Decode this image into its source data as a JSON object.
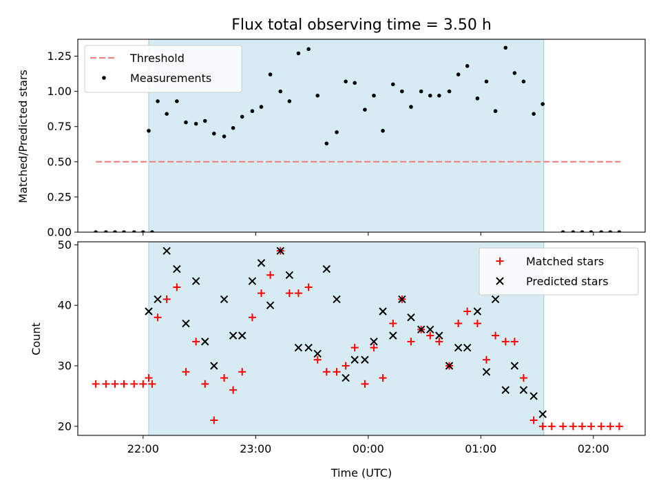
{
  "chart_data": [
    {
      "type": "scatter",
      "panel": "top",
      "title": "Flux total observing time = 3.50 h",
      "xlabel": "",
      "ylabel": "Matched/Predicted stars",
      "x_unit": "hours (UTC, continuing past midnight as 24-26)",
      "xlim": [
        21.42,
        26.46
      ],
      "ylim": [
        0.0,
        1.37
      ],
      "yticks": [
        0.0,
        0.25,
        0.5,
        0.75,
        1.0,
        1.25
      ],
      "ytick_labels": [
        "0.00",
        "0.25",
        "0.50",
        "0.75",
        "1.00",
        "1.25"
      ],
      "legend_position": "upper-left",
      "shaded_interval": [
        22.05,
        25.56
      ],
      "threshold": {
        "name": "Threshold",
        "y": 0.5,
        "x": [
          21.58,
          26.24
        ],
        "color": "#f08080"
      },
      "series": [
        {
          "name": "Measurements",
          "color": "#000000",
          "marker": "dot",
          "points": [
            [
              21.58,
              0.0
            ],
            [
              21.67,
              0.0
            ],
            [
              21.75,
              0.0
            ],
            [
              21.83,
              0.0
            ],
            [
              21.92,
              0.0
            ],
            [
              22.0,
              0.0
            ],
            [
              22.08,
              0.0
            ],
            [
              22.05,
              0.72
            ],
            [
              22.13,
              0.93
            ],
            [
              22.21,
              0.84
            ],
            [
              22.3,
              0.93
            ],
            [
              22.38,
              0.78
            ],
            [
              22.47,
              0.77
            ],
            [
              22.55,
              0.79
            ],
            [
              22.63,
              0.7
            ],
            [
              22.72,
              0.68
            ],
            [
              22.8,
              0.74
            ],
            [
              22.88,
              0.82
            ],
            [
              22.97,
              0.86
            ],
            [
              23.05,
              0.89
            ],
            [
              23.13,
              1.12
            ],
            [
              23.22,
              1.0
            ],
            [
              23.3,
              0.93
            ],
            [
              23.38,
              1.27
            ],
            [
              23.47,
              1.3
            ],
            [
              23.55,
              0.97
            ],
            [
              23.63,
              0.63
            ],
            [
              23.72,
              0.71
            ],
            [
              23.8,
              1.07
            ],
            [
              23.88,
              1.06
            ],
            [
              23.97,
              0.87
            ],
            [
              24.05,
              0.97
            ],
            [
              24.13,
              0.72
            ],
            [
              24.22,
              1.05
            ],
            [
              24.3,
              1.0
            ],
            [
              24.38,
              0.89
            ],
            [
              24.47,
              1.0
            ],
            [
              24.55,
              0.97
            ],
            [
              24.63,
              0.97
            ],
            [
              24.72,
              1.0
            ],
            [
              24.8,
              1.12
            ],
            [
              24.88,
              1.18
            ],
            [
              24.97,
              0.95
            ],
            [
              25.05,
              1.07
            ],
            [
              25.13,
              0.86
            ],
            [
              25.22,
              1.31
            ],
            [
              25.3,
              1.13
            ],
            [
              25.38,
              1.07
            ],
            [
              25.47,
              0.84
            ],
            [
              25.55,
              0.91
            ],
            [
              25.73,
              0.0
            ],
            [
              25.82,
              0.0
            ],
            [
              25.9,
              0.0
            ],
            [
              25.98,
              0.0
            ],
            [
              26.07,
              0.0
            ],
            [
              26.15,
              0.0
            ],
            [
              26.23,
              0.0
            ]
          ]
        }
      ]
    },
    {
      "type": "scatter",
      "panel": "bottom",
      "title": "",
      "xlabel": "Time (UTC)",
      "ylabel": "Count",
      "xlim": [
        21.42,
        26.46
      ],
      "ylim": [
        18.5,
        50.5
      ],
      "xticks": [
        22,
        23,
        24,
        25,
        26
      ],
      "xtick_labels": [
        "22:00",
        "23:00",
        "00:00",
        "01:00",
        "02:00"
      ],
      "yticks": [
        20,
        30,
        40,
        50
      ],
      "ytick_labels": [
        "20",
        "30",
        "40",
        "50"
      ],
      "legend_position": "upper-right",
      "shaded_interval": [
        22.05,
        25.56
      ],
      "series": [
        {
          "name": "Matched stars",
          "color": "#ff0000",
          "marker": "plus",
          "points": [
            [
              21.58,
              27
            ],
            [
              21.67,
              27
            ],
            [
              21.75,
              27
            ],
            [
              21.83,
              27
            ],
            [
              21.92,
              27
            ],
            [
              22.0,
              27
            ],
            [
              22.08,
              27
            ],
            [
              22.05,
              28
            ],
            [
              22.13,
              38
            ],
            [
              22.21,
              41
            ],
            [
              22.3,
              43
            ],
            [
              22.38,
              29
            ],
            [
              22.47,
              34
            ],
            [
              22.55,
              27
            ],
            [
              22.63,
              21
            ],
            [
              22.72,
              28
            ],
            [
              22.8,
              26
            ],
            [
              22.88,
              29
            ],
            [
              22.97,
              38
            ],
            [
              23.05,
              42
            ],
            [
              23.13,
              45
            ],
            [
              23.22,
              49
            ],
            [
              23.3,
              42
            ],
            [
              23.38,
              42
            ],
            [
              23.47,
              43
            ],
            [
              23.55,
              31
            ],
            [
              23.63,
              29
            ],
            [
              23.72,
              29
            ],
            [
              23.8,
              30
            ],
            [
              23.88,
              33
            ],
            [
              23.97,
              27
            ],
            [
              24.05,
              33
            ],
            [
              24.13,
              28
            ],
            [
              24.22,
              37
            ],
            [
              24.3,
              41
            ],
            [
              24.38,
              34
            ],
            [
              24.47,
              36
            ],
            [
              24.55,
              35
            ],
            [
              24.63,
              34
            ],
            [
              24.72,
              30
            ],
            [
              24.8,
              37
            ],
            [
              24.88,
              39
            ],
            [
              24.97,
              37
            ],
            [
              25.05,
              31
            ],
            [
              25.13,
              35
            ],
            [
              25.22,
              34
            ],
            [
              25.3,
              34
            ],
            [
              25.38,
              28
            ],
            [
              25.47,
              21
            ],
            [
              25.55,
              20
            ],
            [
              25.63,
              20
            ],
            [
              25.73,
              20
            ],
            [
              25.82,
              20
            ],
            [
              25.9,
              20
            ],
            [
              25.98,
              20
            ],
            [
              26.07,
              20
            ],
            [
              26.15,
              20
            ],
            [
              26.23,
              20
            ]
          ]
        },
        {
          "name": "Predicted stars",
          "color": "#000000",
          "marker": "x",
          "points": [
            [
              22.05,
              39
            ],
            [
              22.13,
              41
            ],
            [
              22.21,
              49
            ],
            [
              22.3,
              46
            ],
            [
              22.38,
              37
            ],
            [
              22.47,
              44
            ],
            [
              22.55,
              34
            ],
            [
              22.63,
              30
            ],
            [
              22.72,
              41
            ],
            [
              22.8,
              35
            ],
            [
              22.88,
              35
            ],
            [
              22.97,
              44
            ],
            [
              23.05,
              47
            ],
            [
              23.13,
              40
            ],
            [
              23.22,
              49
            ],
            [
              23.3,
              45
            ],
            [
              23.38,
              33
            ],
            [
              23.47,
              33
            ],
            [
              23.55,
              32
            ],
            [
              23.63,
              46
            ],
            [
              23.72,
              41
            ],
            [
              23.8,
              28
            ],
            [
              23.88,
              31
            ],
            [
              23.97,
              31
            ],
            [
              24.05,
              34
            ],
            [
              24.13,
              39
            ],
            [
              24.22,
              35
            ],
            [
              24.3,
              41
            ],
            [
              24.38,
              38
            ],
            [
              24.47,
              36
            ],
            [
              24.55,
              36
            ],
            [
              24.63,
              35
            ],
            [
              24.72,
              30
            ],
            [
              24.8,
              33
            ],
            [
              24.88,
              33
            ],
            [
              24.97,
              39
            ],
            [
              25.05,
              29
            ],
            [
              25.13,
              41
            ],
            [
              25.22,
              26
            ],
            [
              25.3,
              30
            ],
            [
              25.38,
              26
            ],
            [
              25.47,
              25
            ],
            [
              25.55,
              22
            ]
          ]
        }
      ]
    }
  ]
}
